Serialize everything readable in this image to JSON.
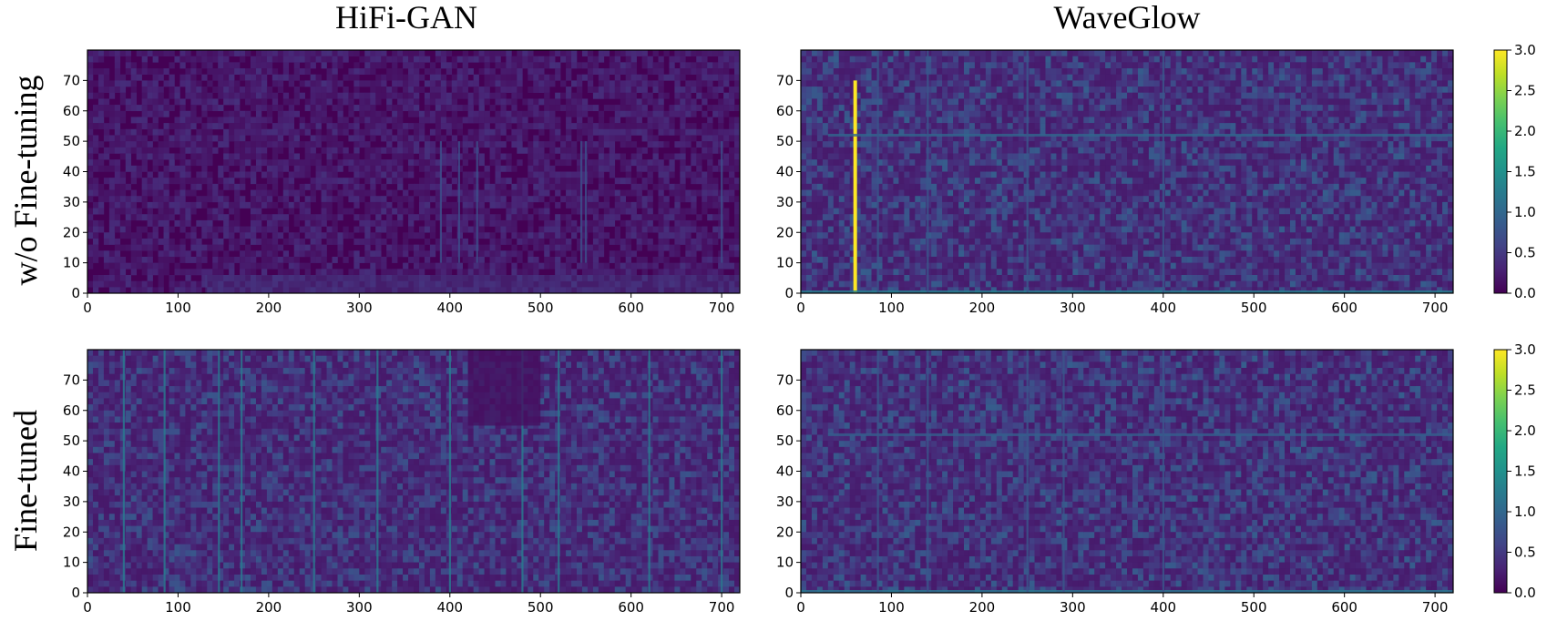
{
  "columns": [
    "HiFi-GAN",
    "WaveGlow"
  ],
  "rows": [
    "w/o Fine-tuning",
    "Fine-tuned"
  ],
  "colormap": {
    "name": "viridis",
    "colors": [
      "#440154",
      "#482475",
      "#414487",
      "#355f8d",
      "#2a788e",
      "#21918c",
      "#22a884",
      "#44bf70",
      "#7ad151",
      "#bddf26",
      "#fde725"
    ]
  },
  "chart_data": [
    {
      "type": "heatmap",
      "row": "w/o Fine-tuning",
      "column": "HiFi-GAN",
      "xlim": [
        0,
        720
      ],
      "ylim": [
        0,
        80
      ],
      "xticks": [
        0,
        100,
        200,
        300,
        400,
        500,
        600,
        700
      ],
      "yticks": [
        0,
        10,
        20,
        30,
        40,
        50,
        60,
        70
      ],
      "value_range": [
        0,
        3
      ],
      "colorbar": false,
      "mean_level": 0.25,
      "features": [
        {
          "kind": "low_band",
          "x_range": [
            130,
            720
          ],
          "y_range": [
            0,
            6
          ],
          "level": 0.5
        },
        {
          "kind": "streaks",
          "x": [
            390,
            410,
            430,
            545,
            550,
            700
          ],
          "y_range": [
            10,
            50
          ],
          "level": 0.7
        }
      ]
    },
    {
      "type": "heatmap",
      "row": "w/o Fine-tuning",
      "column": "WaveGlow",
      "xlim": [
        0,
        720
      ],
      "ylim": [
        0,
        80
      ],
      "xticks": [
        0,
        100,
        200,
        300,
        400,
        500,
        600,
        700
      ],
      "yticks": [
        0,
        10,
        20,
        30,
        40,
        50,
        60,
        70
      ],
      "value_range": [
        0,
        3
      ],
      "colorbar": true,
      "colorbar_ticks": [
        "0.0",
        "0.5",
        "1.0",
        "1.5",
        "2.0",
        "2.5",
        "3.0"
      ],
      "mean_level": 0.55,
      "features": [
        {
          "kind": "spike",
          "x": 60,
          "y_range": [
            0,
            70
          ],
          "level": 3.0
        },
        {
          "kind": "horizontal_line",
          "y": 52,
          "x_range": [
            30,
            720
          ],
          "level": 1.0
        },
        {
          "kind": "bottom_line",
          "y": 0,
          "x_range": [
            0,
            720
          ],
          "level": 1.3
        },
        {
          "kind": "streaks",
          "x": [
            85,
            140,
            250,
            400
          ],
          "y_range": [
            0,
            80
          ],
          "level": 0.8
        }
      ]
    },
    {
      "type": "heatmap",
      "row": "Fine-tuned",
      "column": "HiFi-GAN",
      "xlim": [
        0,
        720
      ],
      "ylim": [
        0,
        80
      ],
      "xticks": [
        0,
        100,
        200,
        300,
        400,
        500,
        600,
        700
      ],
      "yticks": [
        0,
        10,
        20,
        30,
        40,
        50,
        60,
        70
      ],
      "value_range": [
        0,
        3
      ],
      "colorbar": false,
      "mean_level": 0.5,
      "features": [
        {
          "kind": "streaks",
          "x": [
            40,
            85,
            145,
            170,
            250,
            320,
            400,
            480,
            520,
            620,
            700
          ],
          "y_range": [
            0,
            80
          ],
          "level": 1.2
        },
        {
          "kind": "dark_region",
          "x_range": [
            420,
            500
          ],
          "y_range": [
            55,
            80
          ],
          "level": 0.1
        }
      ]
    },
    {
      "type": "heatmap",
      "row": "Fine-tuned",
      "column": "WaveGlow",
      "xlim": [
        0,
        720
      ],
      "ylim": [
        0,
        80
      ],
      "xticks": [
        0,
        100,
        200,
        300,
        400,
        500,
        600,
        700
      ],
      "yticks": [
        0,
        10,
        20,
        30,
        40,
        50,
        60,
        70
      ],
      "value_range": [
        0,
        3
      ],
      "colorbar": true,
      "colorbar_ticks": [
        "0.0",
        "0.5",
        "1.0",
        "1.5",
        "2.0",
        "2.5",
        "3.0"
      ],
      "mean_level": 0.55,
      "features": [
        {
          "kind": "horizontal_line",
          "y": 52,
          "x_range": [
            30,
            720
          ],
          "level": 0.9
        },
        {
          "kind": "bottom_line",
          "y": 0,
          "x_range": [
            0,
            720
          ],
          "level": 1.2
        },
        {
          "kind": "streaks",
          "x": [
            85,
            140,
            250,
            290,
            400
          ],
          "y_range": [
            0,
            80
          ],
          "level": 0.8
        }
      ]
    }
  ]
}
